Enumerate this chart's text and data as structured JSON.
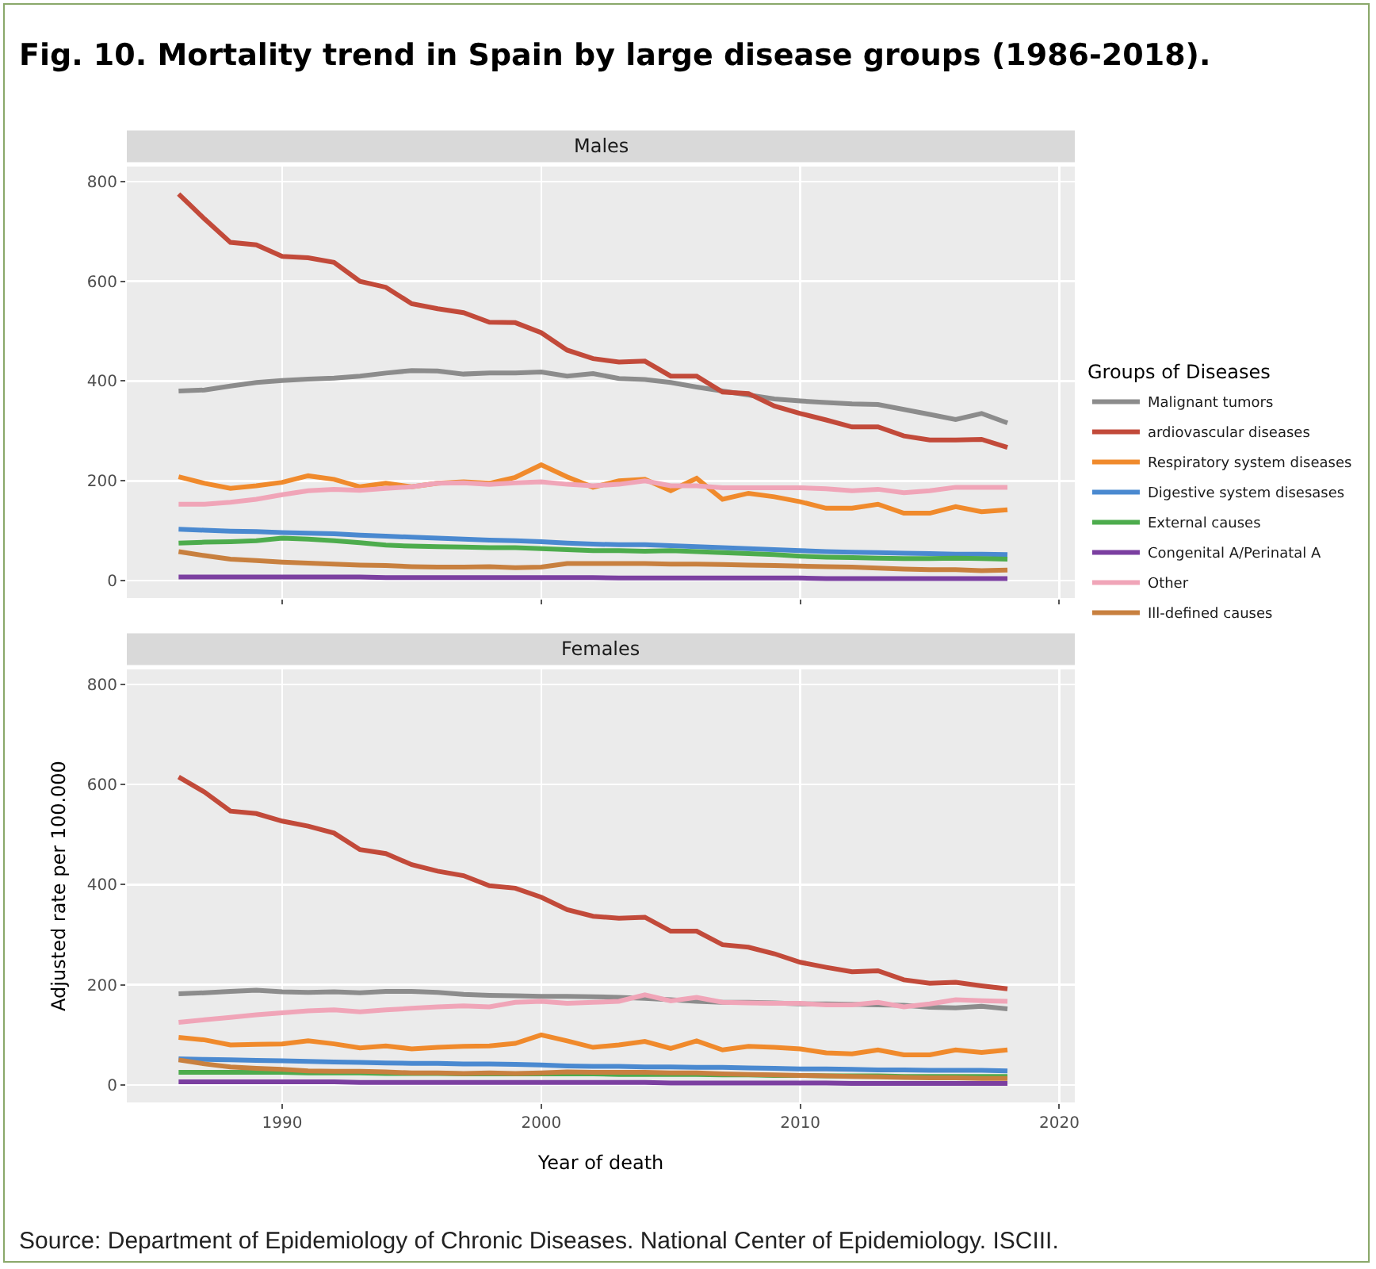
{
  "chart_data": [
    {
      "type": "line",
      "title": "Fig. 10. Mortality trend in Spain by large disease groups (1986-2018).",
      "subtitle": "Males",
      "x": [
        1986,
        1987,
        1988,
        1989,
        1990,
        1991,
        1992,
        1993,
        1994,
        1995,
        1996,
        1997,
        1998,
        1999,
        2000,
        2001,
        2002,
        2003,
        2004,
        2005,
        2006,
        2007,
        2008,
        2009,
        2010,
        2011,
        2012,
        2013,
        2014,
        2015,
        2016,
        2017,
        2018
      ],
      "xlim": [
        1984,
        2020.6
      ],
      "xticks": [
        1990,
        2000,
        2010,
        2020
      ],
      "ylim": [
        -35,
        830
      ],
      "yticks": [
        0,
        200,
        400,
        600,
        800
      ],
      "grid": true,
      "legend": "right",
      "legend_title": "Groups of Diseases",
      "tick_labels": "y",
      "line_style": "solid",
      "marker": "none",
      "series": [
        {
          "name": "Malignant tumors",
          "color": "#8c8c8c",
          "values": [
            380,
            382,
            390,
            397,
            401,
            404,
            406,
            410,
            416,
            421,
            420,
            414,
            416,
            416,
            418,
            410,
            415,
            405,
            403,
            397,
            388,
            380,
            372,
            364,
            360,
            357,
            354,
            353,
            343,
            333,
            323,
            335,
            316
          ]
        },
        {
          "name": "ardiovascular diseases",
          "color": "#c24a3a",
          "values": [
            775,
            725,
            678,
            673,
            650,
            647,
            638,
            600,
            588,
            555,
            545,
            537,
            518,
            517,
            497,
            462,
            445,
            438,
            440,
            410,
            410,
            378,
            375,
            350,
            335,
            322,
            308,
            308,
            290,
            282,
            282,
            283,
            267
          ]
        },
        {
          "name": "Respiratory system diseases",
          "color": "#f08a2c",
          "values": [
            208,
            195,
            185,
            190,
            197,
            210,
            203,
            188,
            195,
            188,
            195,
            198,
            195,
            207,
            232,
            208,
            187,
            200,
            203,
            180,
            205,
            163,
            175,
            168,
            158,
            145,
            145,
            153,
            135,
            135,
            148,
            138,
            142
          ]
        },
        {
          "name": "Digestive system disesases",
          "color": "#4a89d0",
          "values": [
            103,
            101,
            99,
            98,
            96,
            95,
            94,
            91,
            89,
            87,
            85,
            83,
            81,
            80,
            78,
            75,
            73,
            72,
            72,
            70,
            68,
            66,
            64,
            62,
            60,
            58,
            57,
            56,
            55,
            54,
            53,
            53,
            52
          ]
        },
        {
          "name": "External causes",
          "color": "#4dac4d",
          "values": [
            75,
            77,
            78,
            80,
            85,
            83,
            80,
            76,
            71,
            69,
            68,
            67,
            66,
            66,
            64,
            62,
            60,
            60,
            59,
            60,
            58,
            56,
            54,
            52,
            49,
            47,
            46,
            45,
            44,
            44,
            45,
            44,
            43
          ]
        },
        {
          "name": "Congenital A/Perinatal A",
          "color": "#7b3fa0",
          "values": [
            7,
            7,
            7,
            7,
            7,
            7,
            7,
            7,
            6,
            6,
            6,
            6,
            6,
            6,
            6,
            6,
            6,
            5,
            5,
            5,
            5,
            5,
            5,
            5,
            5,
            4,
            4,
            4,
            4,
            4,
            4,
            4,
            4
          ]
        },
        {
          "name": "Other",
          "color": "#f0a5b8",
          "values": [
            153,
            153,
            157,
            163,
            172,
            180,
            183,
            181,
            185,
            188,
            195,
            196,
            193,
            196,
            198,
            193,
            190,
            193,
            200,
            190,
            190,
            186,
            186,
            186,
            186,
            184,
            180,
            183,
            176,
            180,
            187,
            187,
            187
          ]
        },
        {
          "name": "Ill-defined causes",
          "color": "#c8803f",
          "values": [
            58,
            50,
            43,
            40,
            37,
            35,
            33,
            31,
            30,
            28,
            27,
            27,
            28,
            26,
            27,
            34,
            34,
            34,
            34,
            33,
            33,
            32,
            31,
            30,
            29,
            28,
            27,
            25,
            23,
            22,
            22,
            20,
            21
          ]
        }
      ]
    },
    {
      "type": "line",
      "title": "Females",
      "xlabel": "Year of death",
      "ylabel": "Adjusted rate per 100.000",
      "x": [
        1986,
        1987,
        1988,
        1989,
        1990,
        1991,
        1992,
        1993,
        1994,
        1995,
        1996,
        1997,
        1998,
        1999,
        2000,
        2001,
        2002,
        2003,
        2004,
        2005,
        2006,
        2007,
        2008,
        2009,
        2010,
        2011,
        2012,
        2013,
        2014,
        2015,
        2016,
        2017,
        2018
      ],
      "xlim": [
        1984,
        2020.6
      ],
      "xticks": [
        1990,
        2000,
        2010,
        2020
      ],
      "ylim": [
        -35,
        830
      ],
      "yticks": [
        0,
        200,
        400,
        600,
        800
      ],
      "grid": true,
      "line_style": "solid",
      "marker": "none",
      "annotations": [
        "Source: Department of Epidemiology of Chronic Diseases. National Center of Epidemiology. ISCIII."
      ],
      "series": [
        {
          "color": "#8c8c8c",
          "values": [
            182,
            184,
            187,
            189,
            186,
            185,
            186,
            184,
            187,
            187,
            185,
            181,
            179,
            178,
            177,
            177,
            176,
            175,
            173,
            170,
            167,
            165,
            165,
            164,
            162,
            162,
            161,
            160,
            159,
            155,
            154,
            157,
            152
          ]
        },
        {
          "color": "#c24a3a",
          "values": [
            615,
            585,
            547,
            542,
            527,
            517,
            503,
            470,
            462,
            440,
            427,
            418,
            398,
            393,
            375,
            350,
            337,
            333,
            335,
            307,
            307,
            280,
            275,
            262,
            245,
            235,
            226,
            228,
            210,
            203,
            205,
            198,
            192
          ]
        },
        {
          "color": "#f08a2c",
          "values": [
            95,
            90,
            80,
            81,
            82,
            88,
            82,
            74,
            78,
            72,
            75,
            77,
            78,
            83,
            100,
            88,
            75,
            80,
            87,
            73,
            88,
            70,
            77,
            75,
            72,
            64,
            62,
            70,
            60,
            60,
            70,
            65,
            70
          ]
        },
        {
          "color": "#4a89d0",
          "values": [
            52,
            51,
            50,
            49,
            48,
            47,
            46,
            45,
            44,
            43,
            43,
            42,
            42,
            41,
            40,
            38,
            37,
            37,
            36,
            36,
            35,
            35,
            34,
            33,
            32,
            32,
            31,
            30,
            30,
            29,
            29,
            29,
            28
          ]
        },
        {
          "color": "#4dac4d",
          "values": [
            25,
            25,
            25,
            25,
            25,
            24,
            24,
            24,
            23,
            23,
            23,
            22,
            22,
            22,
            22,
            22,
            22,
            21,
            21,
            21,
            21,
            20,
            20,
            19,
            19,
            18,
            18,
            18,
            17,
            17,
            17,
            17,
            17
          ]
        },
        {
          "color": "#7b3fa0",
          "values": [
            6,
            6,
            6,
            6,
            6,
            6,
            6,
            5,
            5,
            5,
            5,
            5,
            5,
            5,
            5,
            5,
            5,
            5,
            5,
            4,
            4,
            4,
            4,
            4,
            4,
            4,
            3,
            3,
            3,
            3,
            3,
            3,
            3
          ]
        },
        {
          "color": "#f0a5b8",
          "values": [
            125,
            130,
            135,
            140,
            144,
            148,
            150,
            146,
            150,
            153,
            156,
            158,
            156,
            165,
            167,
            163,
            165,
            167,
            180,
            168,
            175,
            165,
            164,
            163,
            163,
            160,
            160,
            165,
            156,
            162,
            170,
            168,
            167
          ]
        },
        {
          "color": "#c8803f",
          "values": [
            50,
            42,
            36,
            33,
            31,
            28,
            27,
            27,
            26,
            24,
            24,
            23,
            24,
            23,
            24,
            26,
            25,
            25,
            25,
            24,
            24,
            22,
            21,
            20,
            19,
            18,
            17,
            16,
            15,
            14,
            14,
            13,
            13
          ]
        }
      ]
    }
  ]
}
